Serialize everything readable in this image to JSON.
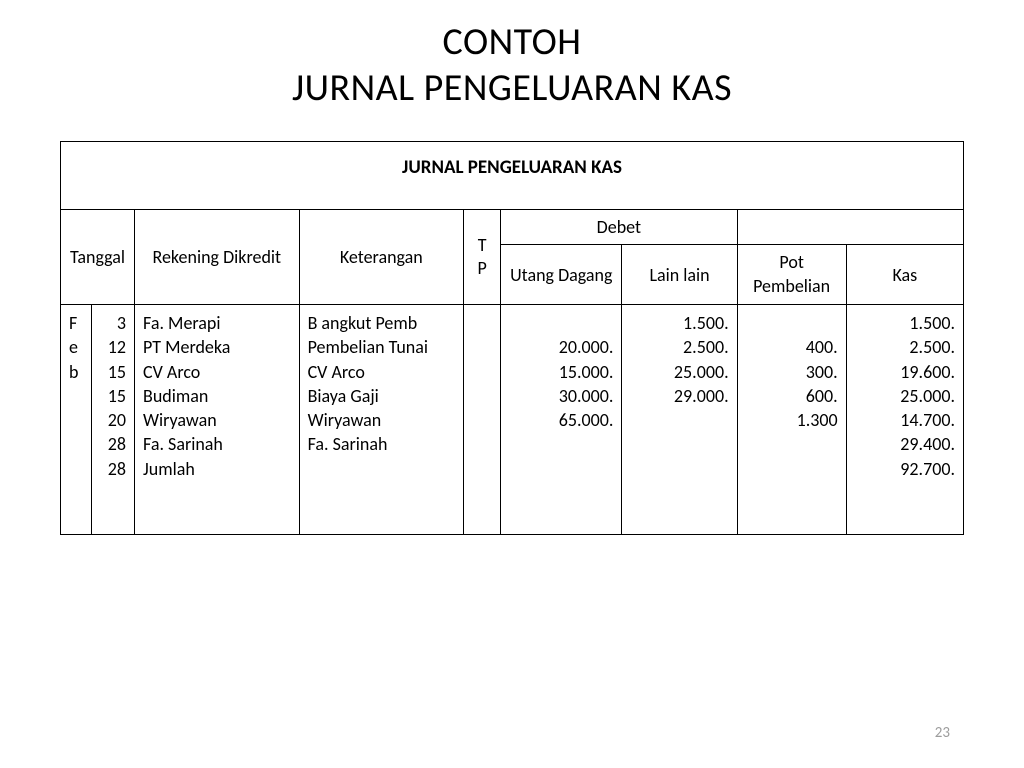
{
  "title_line1": "CONTOH",
  "title_line2": "JURNAL PENGELUARAN KAS",
  "table": {
    "banner": "JURNAL PENGELUARAN KAS",
    "headers": {
      "tanggal": "Tanggal",
      "rekening": "Rekening Dikredit",
      "keterangan": "Keterangan",
      "tp": "TP",
      "debet": "Debet",
      "utang": "Utang Dagang",
      "lain": "Lain lain",
      "pot": "Pot Pembelian",
      "kas": "Kas"
    },
    "col_widths": {
      "month": 30,
      "day": 42,
      "rekening": 160,
      "keterangan": 160,
      "tp": 36,
      "utang": 118,
      "lain": 112,
      "pot": 106,
      "kas": 114
    },
    "body": {
      "month": [
        "F",
        "e",
        "b"
      ],
      "days": [
        "3",
        "12",
        "15",
        "15",
        "20",
        "28",
        "28"
      ],
      "rekening": [
        "Fa. Merapi",
        "PT Merdeka",
        "CV Arco",
        "Budiman",
        "Wiryawan",
        "Fa. Sarinah",
        "Jumlah"
      ],
      "keterangan": [
        "B angkut Pemb",
        "Pembelian Tunai",
        "CV Arco",
        "Biaya Gaji",
        "Wiryawan",
        "Fa. Sarinah"
      ],
      "utang": [
        "",
        "20.000.",
        "15.000.",
        "30.000.",
        "65.000."
      ],
      "lain": [
        "1.500.",
        "2.500.",
        "25.000.",
        "29.000."
      ],
      "pot": [
        "",
        "400.",
        "300.",
        "600.",
        "1.300"
      ],
      "kas": [
        "1.500.",
        "2.500.",
        "19.600.",
        "25.000.",
        "14.700.",
        "29.400.",
        "92.700."
      ]
    }
  },
  "page_number": "23",
  "colors": {
    "background": "#ffffff",
    "text": "#000000",
    "border": "#000000",
    "page_num": "#9c9c9c"
  },
  "fonts": {
    "title_size_pt": 38,
    "header_size_pt": 18,
    "banner_size_pt": 19,
    "body_size_pt": 18,
    "page_num_size_pt": 15
  }
}
